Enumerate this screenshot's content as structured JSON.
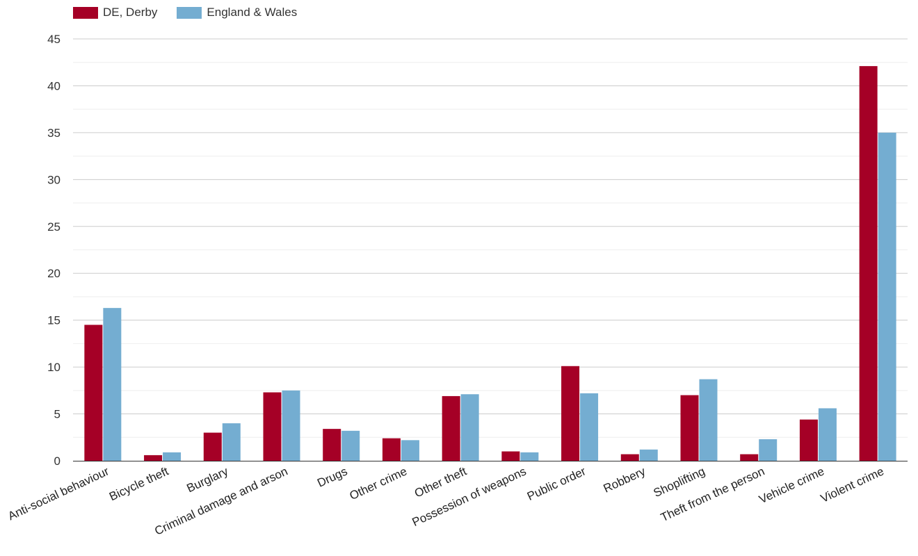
{
  "chart_data": {
    "type": "bar",
    "categories": [
      "Anti-social behaviour",
      "Bicycle theft",
      "Burglary",
      "Criminal damage and arson",
      "Drugs",
      "Other crime",
      "Other theft",
      "Possession of weapons",
      "Public order",
      "Robbery",
      "Shoplifting",
      "Theft from the person",
      "Vehicle crime",
      "Violent crime"
    ],
    "series": [
      {
        "name": "DE, Derby",
        "color": "#a50026",
        "values": [
          14.5,
          0.6,
          3.0,
          7.3,
          3.4,
          2.4,
          6.9,
          1.0,
          10.1,
          0.7,
          7.0,
          0.7,
          4.4,
          42.1
        ]
      },
      {
        "name": "England & Wales",
        "color": "#74add1",
        "values": [
          16.3,
          0.9,
          4.0,
          7.5,
          3.2,
          2.2,
          7.1,
          0.9,
          7.2,
          1.2,
          8.7,
          2.3,
          5.6,
          35.0
        ]
      }
    ],
    "yticks": [
      0,
      5,
      10,
      15,
      20,
      25,
      30,
      35,
      40,
      45
    ],
    "ylim": [
      0,
      45
    ],
    "grid": true,
    "legend_position": "top-left"
  }
}
